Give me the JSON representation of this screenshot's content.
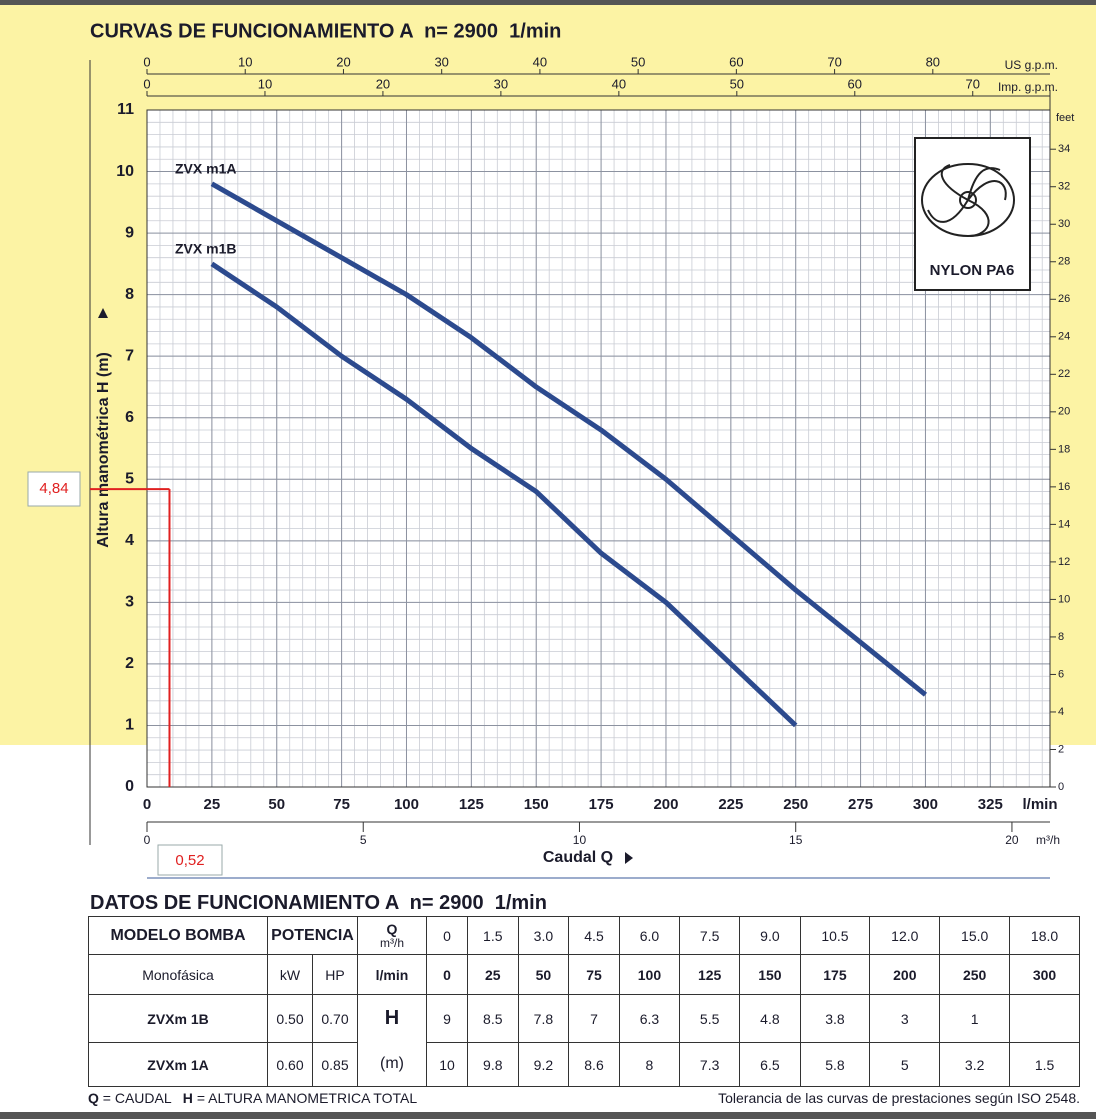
{
  "chart_data": {
    "type": "line",
    "title": "CURVAS DE FUNCIONAMIENTO A  n= 2900  1/min",
    "x_label": "l/min",
    "y_label": "Altura manométrica H (m)",
    "y2_label": "feet",
    "x": [
      25,
      50,
      75,
      100,
      125,
      150,
      175,
      200,
      250,
      300
    ],
    "series": [
      {
        "name": "ZVX m1A",
        "color": "#2c4a8e",
        "values": [
          9.8,
          9.2,
          8.6,
          8,
          7.3,
          6.5,
          5.8,
          5,
          3.2,
          1.5
        ]
      },
      {
        "name": "ZVX m1B",
        "color": "#2c4a8e",
        "values": [
          8.5,
          7.8,
          7,
          6.3,
          5.5,
          4.8,
          3.8,
          3,
          1,
          null
        ]
      }
    ],
    "xlim": [
      0,
      348
    ],
    "xticks": [
      0,
      25,
      50,
      75,
      100,
      125,
      150,
      175,
      200,
      225,
      250,
      275,
      300,
      325
    ],
    "ylim": [
      0,
      11
    ],
    "yticks": [
      0,
      1,
      2,
      3,
      4,
      5,
      6,
      7,
      8,
      9,
      10,
      11
    ],
    "y2lim": [
      0,
      36.09
    ],
    "y2ticks": [
      0,
      2,
      4,
      6,
      8,
      10,
      12,
      14,
      16,
      18,
      20,
      22,
      24,
      26,
      28,
      30,
      32,
      34
    ],
    "grid": true,
    "minor_grid": {
      "x": 5,
      "y": 0.2
    },
    "top_axes": [
      {
        "label": "US g.p.m.",
        "lim": [
          0,
          91.93
        ],
        "ticks": [
          0,
          10,
          20,
          30,
          40,
          50,
          60,
          70,
          80
        ]
      },
      {
        "label": "Imp. g.p.m.",
        "lim": [
          0,
          76.55
        ],
        "ticks": [
          0,
          10,
          20,
          30,
          40,
          50,
          60,
          70
        ]
      }
    ],
    "bottom_axis": {
      "label": "m³/h",
      "title": "Caudal Q",
      "lim": [
        0,
        20.88
      ],
      "ticks": [
        0,
        5,
        10,
        15,
        20
      ]
    },
    "impeller_label": "NYLON PA6",
    "annotations": [
      {
        "label": "4,84",
        "value": 4.84,
        "color": "#e02020"
      },
      {
        "label": "0,52",
        "value": 0.52,
        "color": "#e02020"
      }
    ]
  },
  "table": {
    "title": "DATOS DE FUNCIONAMIENTO A  n= 2900  1/min",
    "head": {
      "model": "MODELO BOMBA",
      "power": "POTENCIA",
      "q": "Q",
      "q_unit": "m³/h",
      "m3h": [
        "0",
        "1.5",
        "3.0",
        "4.5",
        "6.0",
        "7.5",
        "9.0",
        "10.5",
        "12.0",
        "15.0",
        "18.0"
      ],
      "phase": "Monofásica",
      "kw": "kW",
      "hp": "HP",
      "lmin_unit": "l/min",
      "lmin": [
        "0",
        "25",
        "50",
        "75",
        "100",
        "125",
        "150",
        "175",
        "200",
        "250",
        "300"
      ]
    },
    "h": "H",
    "h_unit": "(m)",
    "rows": [
      {
        "model": "ZVXm 1B",
        "kw": "0.50",
        "hp": "0.70",
        "values": [
          "9",
          "8.5",
          "7.8",
          "7",
          "6.3",
          "5.5",
          "4.8",
          "3.8",
          "3",
          "1",
          null
        ]
      },
      {
        "model": "ZVXm 1A",
        "kw": "0.60",
        "hp": "0.85",
        "values": [
          "10",
          "9.8",
          "9.2",
          "8.6",
          "8",
          "7.3",
          "6.5",
          "5.8",
          "5",
          "3.2",
          "1.5"
        ]
      }
    ]
  },
  "footer": {
    "q": "Q",
    "q_text": "= CAUDAL",
    "h": "H",
    "h_text": "= ALTURA MANOMETRICA TOTAL",
    "note": "Tolerancia de las curvas de prestaciones según ISO 2548."
  }
}
